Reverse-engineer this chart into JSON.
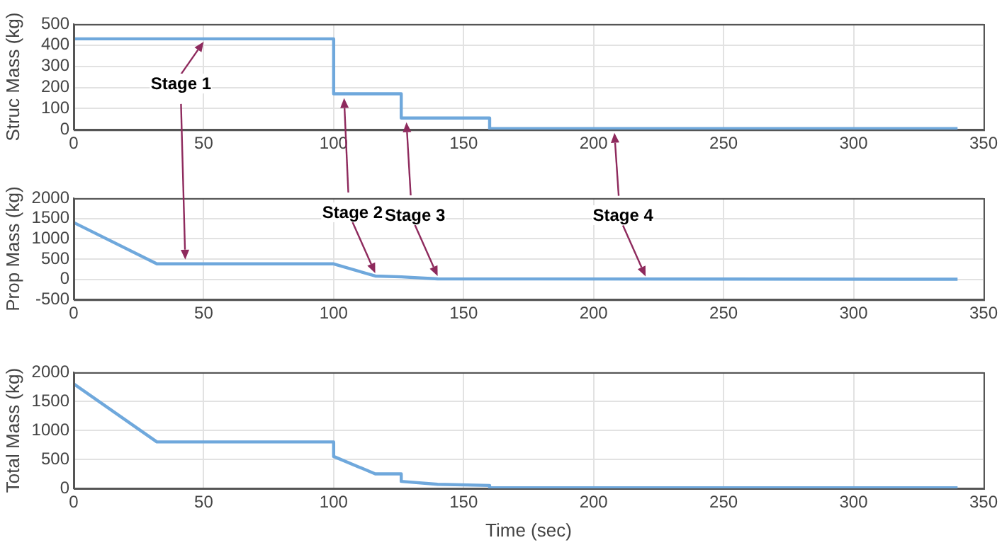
{
  "chart_data": [
    {
      "type": "line",
      "ylabel": "Struc Mass (kg)",
      "x": [
        0,
        100,
        100,
        126,
        126,
        160,
        160,
        340
      ],
      "series": [
        {
          "color": "#6fa8dc",
          "values": [
            430,
            430,
            170,
            170,
            55,
            55,
            5,
            5
          ]
        }
      ],
      "xlim": [
        0,
        350
      ],
      "xticks": [
        0,
        50,
        100,
        150,
        200,
        250,
        300,
        350
      ],
      "ylim": [
        0,
        500
      ],
      "yticks": [
        0,
        100,
        200,
        300,
        400,
        500
      ],
      "grid": true,
      "legend": false,
      "annotations": [
        {
          "text": "Stage 1",
          "x": 50,
          "y": 430
        }
      ]
    },
    {
      "type": "line",
      "ylabel": "Prop Mass (kg)",
      "x": [
        0,
        32,
        100,
        116,
        126,
        140,
        340
      ],
      "series": [
        {
          "color": "#6fa8dc",
          "values": [
            1400,
            380,
            380,
            80,
            60,
            10,
            0
          ]
        }
      ],
      "xlim": [
        0,
        350
      ],
      "xticks": [
        0,
        50,
        100,
        150,
        200,
        250,
        300,
        350
      ],
      "ylim": [
        -500,
        2000
      ],
      "yticks": [
        -500,
        0,
        500,
        1000,
        1500,
        2000
      ],
      "grid": true,
      "legend": false,
      "annotations": [
        {
          "text": "Stage 2",
          "x": 116,
          "y": 80
        },
        {
          "text": "Stage 3",
          "x": 140,
          "y": 10
        },
        {
          "text": "Stage 4",
          "x": 220,
          "y": 0
        }
      ]
    },
    {
      "type": "line",
      "xlabel": "Time (sec)",
      "ylabel": "Total Mass (kg)",
      "x": [
        0,
        32,
        100,
        100,
        116,
        126,
        126,
        140,
        160,
        160,
        340
      ],
      "series": [
        {
          "color": "#6fa8dc",
          "values": [
            1800,
            800,
            800,
            550,
            250,
            250,
            120,
            70,
            50,
            10,
            10
          ]
        }
      ],
      "xlim": [
        0,
        350
      ],
      "xticks": [
        0,
        50,
        100,
        150,
        200,
        250,
        300,
        350
      ],
      "ylim": [
        0,
        2000
      ],
      "yticks": [
        0,
        500,
        1000,
        1500,
        2000
      ],
      "grid": true,
      "legend": false
    }
  ]
}
